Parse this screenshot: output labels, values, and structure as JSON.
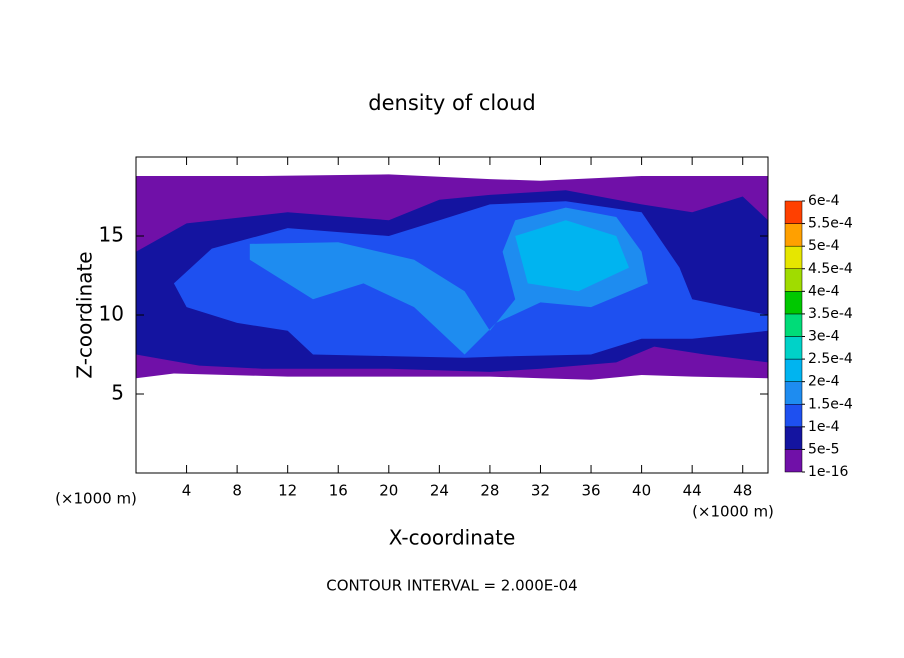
{
  "chart_data": {
    "type": "contour",
    "title": "density of cloud",
    "x_label": "X-coordinate",
    "y_label": "Z-coordinate",
    "x_unit": "(×1000 m)",
    "y_unit": "(×1000 m)",
    "annotation": "CONTOUR INTERVAL = 2.000E-04",
    "xlim": [
      0,
      50
    ],
    "ylim": [
      0,
      20
    ],
    "xticks": [
      4,
      8,
      12,
      16,
      20,
      24,
      28,
      32,
      36,
      40,
      44,
      48
    ],
    "yticks": [
      5,
      10,
      15
    ],
    "colorbar": {
      "ticks": [
        {
          "value": 1e-16,
          "label": "1e-16"
        },
        {
          "value": 5e-05,
          "label": "5e-5"
        },
        {
          "value": 0.0001,
          "label": "1e-4"
        },
        {
          "value": 0.00015,
          "label": "1.5e-4"
        },
        {
          "value": 0.0002,
          "label": "2e-4"
        },
        {
          "value": 0.00025,
          "label": "2.5e-4"
        },
        {
          "value": 0.0003,
          "label": "3e-4"
        },
        {
          "value": 0.00035,
          "label": "3.5e-4"
        },
        {
          "value": 0.0004,
          "label": "4e-4"
        },
        {
          "value": 0.00045,
          "label": "4.5e-4"
        },
        {
          "value": 0.0005,
          "label": "5e-4"
        },
        {
          "value": 0.00055,
          "label": "5.5e-4"
        },
        {
          "value": 0.0006,
          "label": "6e-4"
        }
      ],
      "colors": [
        "#7010a8",
        "#1414a0",
        "#1e50f0",
        "#1e8cf0",
        "#00b4f0",
        "#00d2c8",
        "#00dc78",
        "#00c800",
        "#a0dc00",
        "#e6e600",
        "#ffa000",
        "#ff4000",
        "#ff8080"
      ]
    }
  }
}
